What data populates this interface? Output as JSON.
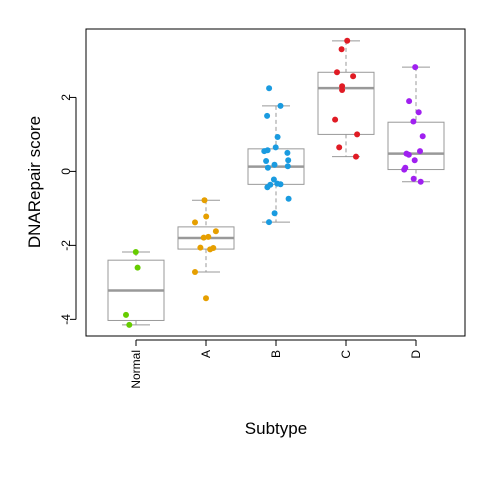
{
  "chart_data": {
    "type": "box",
    "title": "",
    "xlabel": "Subtype",
    "ylabel": "DNARepair score",
    "ylim": [
      -4.45,
      3.85
    ],
    "yticks": [
      -4,
      -2,
      0,
      2
    ],
    "grid": false,
    "legend": "none",
    "categories": [
      "Normal",
      "A",
      "B",
      "C",
      "D"
    ],
    "colors": [
      "#66cc00",
      "#e69f00",
      "#1a9be0",
      "#e01b24",
      "#a020f0"
    ],
    "boxes": [
      {
        "category": "Normal",
        "whisker_low": -4.15,
        "q1": -4.03,
        "median": -3.22,
        "q3": -2.4,
        "whisker_high": -2.18
      },
      {
        "category": "A",
        "whisker_low": -2.72,
        "q1": -2.1,
        "median": -1.8,
        "q3": -1.5,
        "whisker_high": -0.78
      },
      {
        "category": "B",
        "whisker_low": -1.37,
        "q1": -0.35,
        "median": 0.13,
        "q3": 0.61,
        "whisker_high": 1.77
      },
      {
        "category": "C",
        "whisker_low": 0.4,
        "q1": 1.0,
        "median": 2.25,
        "q3": 2.68,
        "whisker_high": 3.53
      },
      {
        "category": "D",
        "whisker_low": -0.28,
        "q1": 0.05,
        "median": 0.48,
        "q3": 1.33,
        "whisker_high": 2.82
      }
    ],
    "points": [
      {
        "category": "Normal",
        "values": [
          -2.18,
          -2.6,
          -3.88,
          -4.15
        ]
      },
      {
        "category": "A",
        "values": [
          -0.78,
          -1.22,
          -1.38,
          -1.62,
          -1.77,
          -1.79,
          -2.06,
          -2.07,
          -2.11,
          -2.72,
          -3.43
        ]
      },
      {
        "category": "B",
        "values": [
          2.25,
          1.77,
          1.5,
          0.93,
          0.65,
          0.57,
          0.55,
          0.5,
          0.3,
          0.28,
          0.18,
          0.14,
          0.1,
          -0.22,
          -0.33,
          -0.35,
          -0.36,
          -0.43,
          -0.74,
          -1.13,
          -1.37
        ]
      },
      {
        "category": "C",
        "values": [
          3.53,
          3.3,
          2.68,
          2.57,
          2.3,
          2.2,
          1.4,
          1.0,
          0.65,
          0.4
        ]
      },
      {
        "category": "D",
        "values": [
          2.82,
          1.9,
          1.6,
          1.35,
          0.95,
          0.55,
          0.48,
          0.45,
          0.3,
          0.1,
          0.05,
          -0.2,
          -0.28
        ]
      }
    ]
  }
}
